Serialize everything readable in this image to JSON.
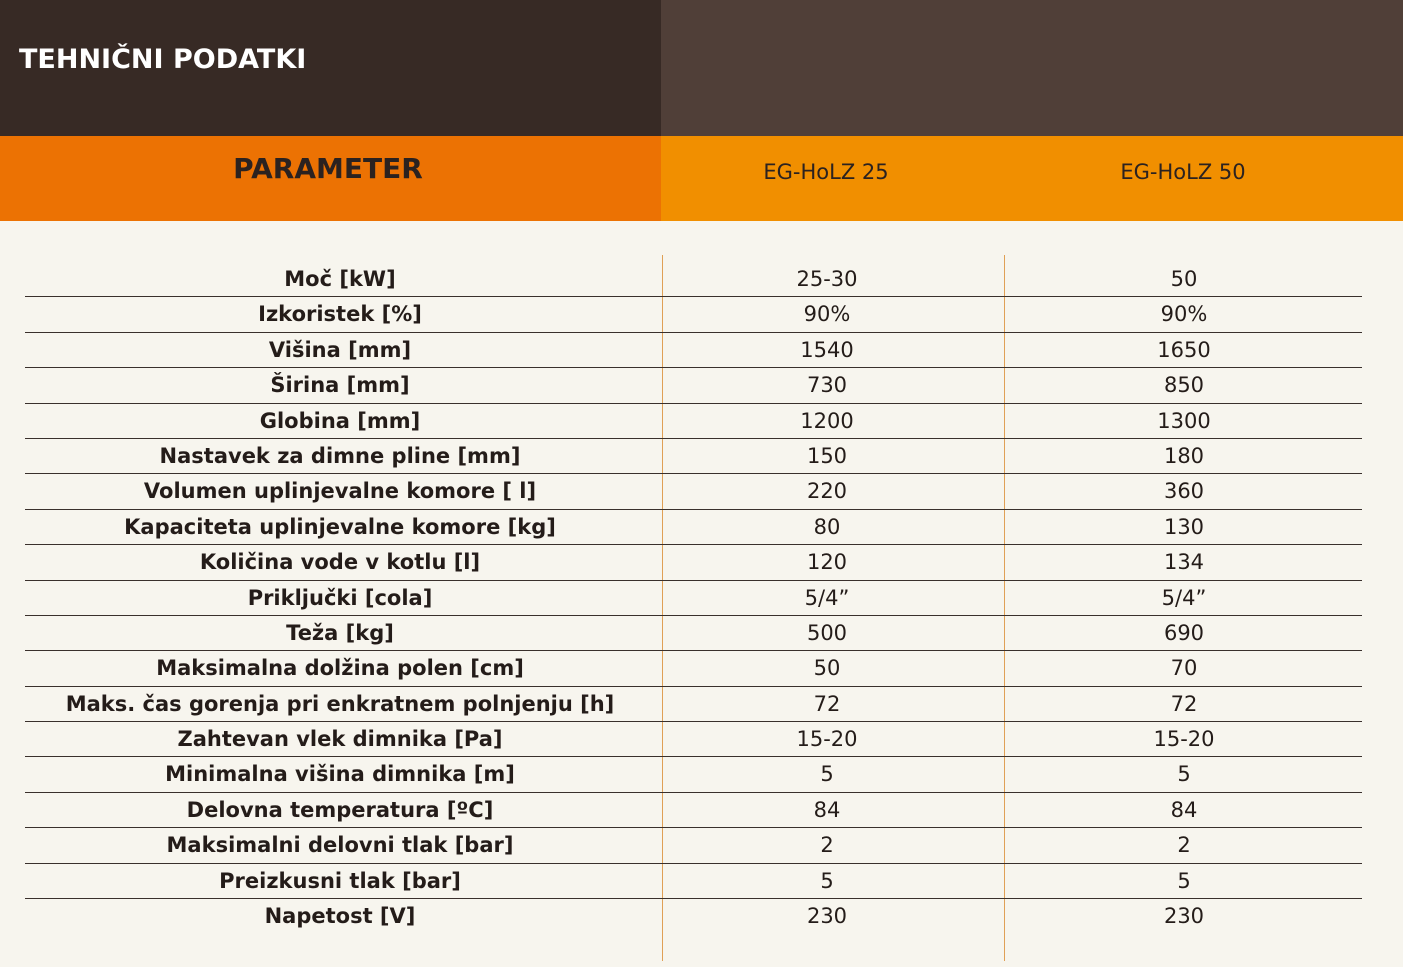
{
  "title": "TEHNIČNI PODATKI",
  "header": {
    "parameter": "PARAMETER",
    "models": [
      "EG-HoLZ 25",
      "EG-HoLZ 50"
    ]
  },
  "rows": [
    {
      "param": "Moč [kW]",
      "v1": "25-30",
      "v2": "50"
    },
    {
      "param": "Izkoristek [%]",
      "v1": "90%",
      "v2": "90%"
    },
    {
      "param": "Višina [mm]",
      "v1": "1540",
      "v2": "1650"
    },
    {
      "param": "Širina [mm]",
      "v1": "730",
      "v2": "850"
    },
    {
      "param": "Globina [mm]",
      "v1": "1200",
      "v2": "1300"
    },
    {
      "param": "Nastavek za dimne pline [mm]",
      "v1": "150",
      "v2": "180"
    },
    {
      "param": "Volumen uplinjevalne komore [ l]",
      "v1": "220",
      "v2": "360"
    },
    {
      "param": "Kapaciteta uplinjevalne komore [kg]",
      "v1": "80",
      "v2": "130"
    },
    {
      "param": "Količina vode v kotlu [l]",
      "v1": "120",
      "v2": "134"
    },
    {
      "param": "Priključki [cola]",
      "v1": "5/4”",
      "v2": "5/4”"
    },
    {
      "param": "Teža [kg]",
      "v1": "500",
      "v2": "690"
    },
    {
      "param": "Maksimalna dolžina polen [cm]",
      "v1": "50",
      "v2": "70"
    },
    {
      "param": "Maks. čas gorenja pri enkratnem polnjenju [h]",
      "v1": "72",
      "v2": "72"
    },
    {
      "param": "Zahtevan vlek dimnika [Pa]",
      "v1": "15-20",
      "v2": "15-20"
    },
    {
      "param": "Minimalna višina dimnika [m]",
      "v1": "5",
      "v2": "5"
    },
    {
      "param": "Delovna temperatura [ºC]",
      "v1": "84",
      "v2": "84"
    },
    {
      "param": "Maksimalni delovni tlak [bar]",
      "v1": "2",
      "v2": "2"
    },
    {
      "param": "Preizkusni tlak [bar]",
      "v1": "5",
      "v2": "5"
    },
    {
      "param": "Napetost [V]",
      "v1": "230",
      "v2": "230"
    }
  ]
}
